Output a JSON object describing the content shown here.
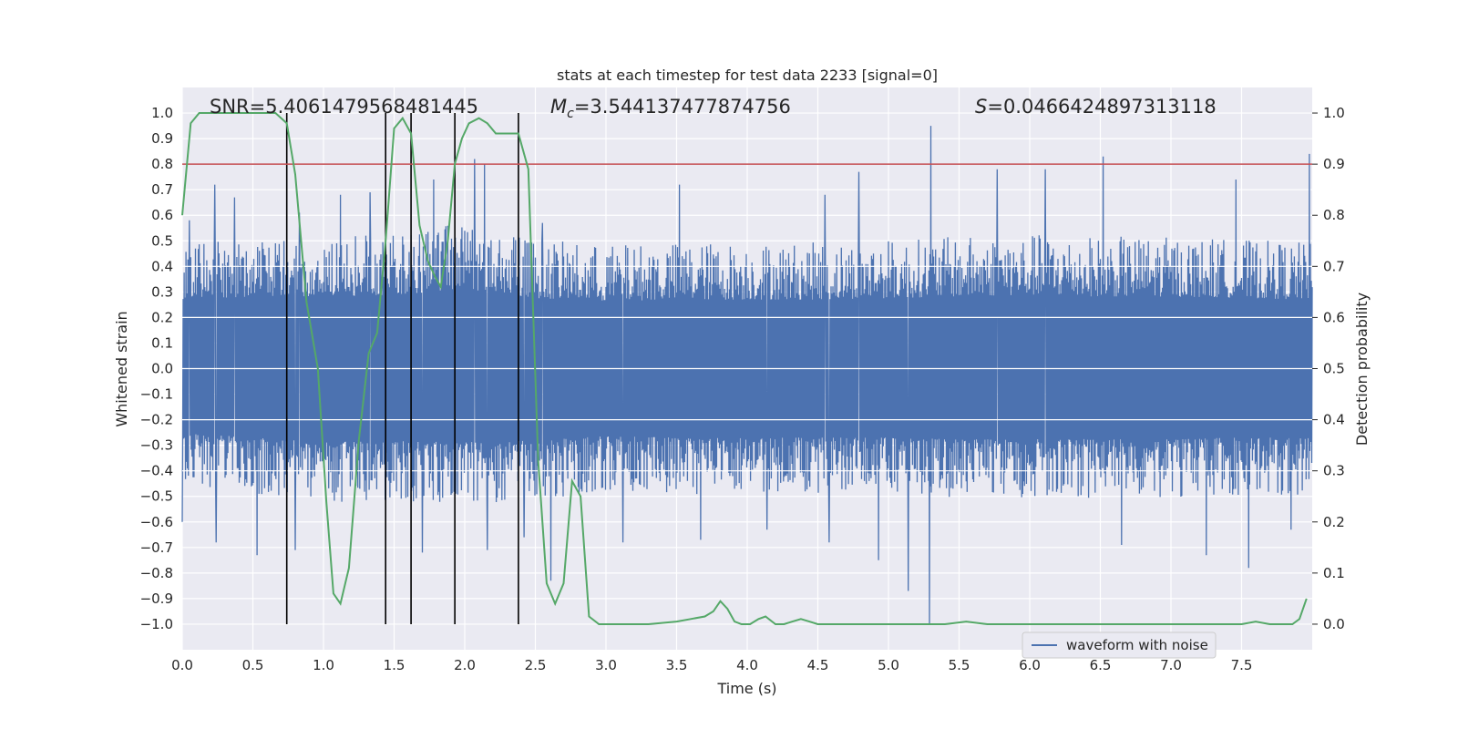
{
  "chart_data": {
    "type": "line",
    "title": "stats at each timestep for test data 2233 [signal=0]",
    "xlabel": "Time (s)",
    "ylabel": "Whitened strain",
    "y2label": "Detection probability",
    "xlim": [
      0.0,
      8.0
    ],
    "ylim": [
      -1.1,
      1.1
    ],
    "y2lim": [
      -0.05,
      1.05
    ],
    "x_ticks": [
      "0.0",
      "0.5",
      "1.0",
      "1.5",
      "2.0",
      "2.5",
      "3.0",
      "3.5",
      "4.0",
      "4.5",
      "5.0",
      "5.5",
      "6.0",
      "6.5",
      "7.0",
      "7.5"
    ],
    "y_ticks": [
      "1.0",
      "0.9",
      "0.8",
      "0.7",
      "0.6",
      "0.5",
      "0.4",
      "0.3",
      "0.2",
      "0.1",
      "0.0",
      "-0.1",
      "-0.2",
      "-0.3",
      "-0.4",
      "-0.5",
      "-0.6",
      "-0.7",
      "-0.8",
      "-0.9",
      "-1.0"
    ],
    "y2_ticks": [
      "1.0",
      "0.9",
      "0.8",
      "0.7",
      "0.6",
      "0.5",
      "0.4",
      "0.3",
      "0.2",
      "0.1",
      "0.0"
    ],
    "grid": true,
    "legend": {
      "entries": [
        "waveform with noise"
      ],
      "placement": "lower-right"
    },
    "annotations": {
      "snr": "SNR=5.4061479568481445",
      "mc_prefix": "M",
      "mc_sub": "c",
      "mc_value": "=3.544137477874756",
      "s_prefix": "S",
      "s_value": "=0.0466424897313118"
    },
    "colors": {
      "waveform": "#4c72b0",
      "probability": "#55a868",
      "threshold": "#c44e52",
      "markers": "#000000",
      "background": "#eaeaf2",
      "grid": "#ffffff"
    },
    "threshold": 0.9,
    "vertical_markers_x": [
      0.74,
      1.44,
      1.62,
      1.93,
      2.38
    ],
    "waveform": {
      "name": "waveform with noise",
      "envelope": {
        "x": [
          0.0,
          0.5,
          1.0,
          1.5,
          2.0,
          2.5,
          3.0,
          3.5,
          4.0,
          4.5,
          5.0,
          5.5,
          6.0,
          6.5,
          7.0,
          7.5,
          8.0
        ],
        "upper": [
          0.45,
          0.47,
          0.47,
          0.48,
          0.52,
          0.46,
          0.44,
          0.45,
          0.45,
          0.45,
          0.46,
          0.47,
          0.48,
          0.47,
          0.47,
          0.46,
          0.45
        ],
        "lower": [
          -0.42,
          -0.45,
          -0.48,
          -0.47,
          -0.48,
          -0.47,
          -0.44,
          -0.45,
          -0.45,
          -0.45,
          -0.45,
          -0.46,
          -0.46,
          -0.46,
          -0.46,
          -0.45,
          -0.45
        ]
      },
      "peaks": [
        {
          "x": 0.05,
          "y": 0.58
        },
        {
          "x": 0.23,
          "y": 0.72
        },
        {
          "x": 0.37,
          "y": 0.67
        },
        {
          "x": 0.53,
          "y": 0.58
        },
        {
          "x": 0.83,
          "y": 0.61
        },
        {
          "x": 1.12,
          "y": 0.68
        },
        {
          "x": 1.33,
          "y": 0.69
        },
        {
          "x": 1.78,
          "y": 0.74
        },
        {
          "x": 2.07,
          "y": 0.82
        },
        {
          "x": 2.14,
          "y": 0.8
        },
        {
          "x": 2.55,
          "y": 0.57
        },
        {
          "x": 3.52,
          "y": 0.72
        },
        {
          "x": 4.55,
          "y": 0.68
        },
        {
          "x": 4.79,
          "y": 0.77
        },
        {
          "x": 5.3,
          "y": 0.95
        },
        {
          "x": 5.77,
          "y": 0.78
        },
        {
          "x": 6.11,
          "y": 0.78
        },
        {
          "x": 6.52,
          "y": 0.83
        },
        {
          "x": 7.46,
          "y": 0.74
        },
        {
          "x": 7.98,
          "y": 0.84
        }
      ],
      "troughs": [
        {
          "x": 0.0,
          "y": -0.6
        },
        {
          "x": 0.24,
          "y": -0.68
        },
        {
          "x": 0.53,
          "y": -0.73
        },
        {
          "x": 0.8,
          "y": -0.71
        },
        {
          "x": 1.7,
          "y": -0.72
        },
        {
          "x": 2.16,
          "y": -0.71
        },
        {
          "x": 2.42,
          "y": -0.66
        },
        {
          "x": 2.61,
          "y": -0.83
        },
        {
          "x": 3.12,
          "y": -0.68
        },
        {
          "x": 3.67,
          "y": -0.67
        },
        {
          "x": 4.14,
          "y": -0.63
        },
        {
          "x": 4.58,
          "y": -0.68
        },
        {
          "x": 4.93,
          "y": -0.75
        },
        {
          "x": 5.14,
          "y": -0.87
        },
        {
          "x": 5.29,
          "y": -1.0
        },
        {
          "x": 6.65,
          "y": -0.69
        },
        {
          "x": 7.25,
          "y": -0.73
        },
        {
          "x": 7.55,
          "y": -0.78
        },
        {
          "x": 7.85,
          "y": -0.63
        }
      ]
    },
    "series": [
      {
        "name": "",
        "axis": "right",
        "x": [
          0.0,
          0.06,
          0.12,
          0.25,
          0.4,
          0.55,
          0.66,
          0.74,
          0.8,
          0.88,
          0.96,
          1.02,
          1.07,
          1.12,
          1.18,
          1.25,
          1.32,
          1.38,
          1.44,
          1.5,
          1.56,
          1.62,
          1.68,
          1.74,
          1.79,
          1.83,
          1.88,
          1.93,
          1.98,
          2.03,
          2.1,
          2.16,
          2.22,
          2.3,
          2.38,
          2.45,
          2.52,
          2.58,
          2.64,
          2.7,
          2.76,
          2.82,
          2.88,
          2.95,
          3.1,
          3.3,
          3.5,
          3.6,
          3.7,
          3.76,
          3.81,
          3.86,
          3.91,
          3.96,
          4.02,
          4.08,
          4.13,
          4.2,
          4.26,
          4.32,
          4.38,
          4.44,
          4.5,
          4.6,
          4.8,
          5.0,
          5.2,
          5.4,
          5.55,
          5.7,
          5.9,
          6.2,
          6.5,
          6.8,
          7.1,
          7.4,
          7.5,
          7.6,
          7.7,
          7.8,
          7.86,
          7.91,
          7.96
        ],
        "y": [
          0.8,
          0.98,
          1.0,
          1.0,
          1.0,
          1.0,
          1.0,
          0.98,
          0.88,
          0.63,
          0.5,
          0.24,
          0.06,
          0.04,
          0.11,
          0.36,
          0.53,
          0.57,
          0.75,
          0.97,
          0.99,
          0.96,
          0.78,
          0.71,
          0.68,
          0.66,
          0.75,
          0.9,
          0.95,
          0.98,
          0.99,
          0.98,
          0.96,
          0.96,
          0.96,
          0.89,
          0.32,
          0.08,
          0.04,
          0.08,
          0.28,
          0.25,
          0.015,
          0.0,
          0.0,
          0.0,
          0.005,
          0.01,
          0.015,
          0.025,
          0.045,
          0.03,
          0.005,
          0.0,
          0.0,
          0.01,
          0.015,
          0.0,
          0.0,
          0.005,
          0.01,
          0.005,
          0.0,
          0.0,
          0.0,
          0.0,
          0.0,
          0.0,
          0.005,
          0.0,
          0.0,
          0.0,
          0.0,
          0.0,
          0.0,
          0.0,
          0.0,
          0.005,
          0.0,
          0.0,
          0.0,
          0.01,
          0.05
        ]
      }
    ]
  }
}
